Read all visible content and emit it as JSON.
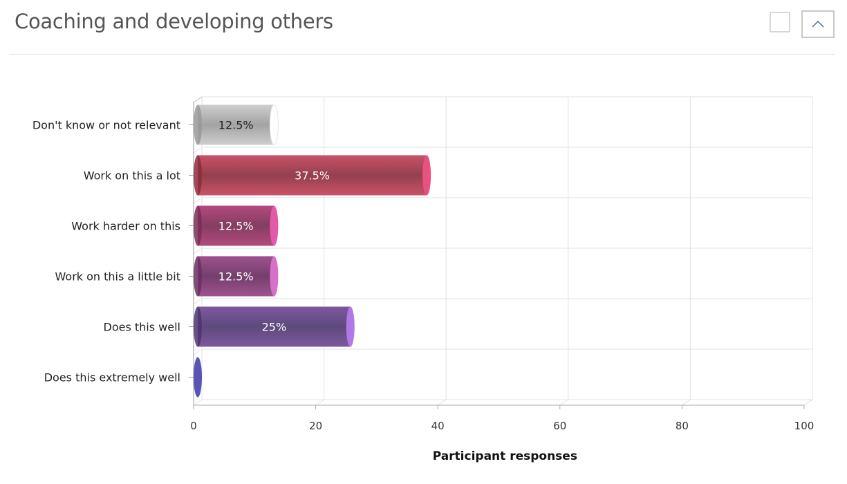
{
  "header": {
    "title": "Coaching and developing others",
    "expand_icon": "square-icon",
    "collapse_icon": "chevron-up-icon"
  },
  "chart_data": {
    "type": "bar",
    "orientation": "horizontal",
    "style": "3d-cylinder",
    "categories": [
      "Don't know or not relevant",
      "Work on this a lot",
      "Work harder on this",
      "Work on this a little bit",
      "Does this well",
      "Does this extremely well"
    ],
    "values": [
      12.5,
      37.5,
      12.5,
      12.5,
      25,
      0
    ],
    "data_labels": [
      "12.5%",
      "37.5%",
      "12.5%",
      "12.5%",
      "25%",
      ""
    ],
    "colors": [
      {
        "body": "#a3a3a3",
        "light": "#cfcfcf",
        "cap": "#ffffff",
        "base": "#999999",
        "label": "#222222"
      },
      {
        "body": "#93404f",
        "light": "#c95267",
        "cap": "#e8527e",
        "base": "#8e2a3c",
        "label": "#ffffff"
      },
      {
        "body": "#843e62",
        "light": "#b24a7e",
        "cap": "#e25aa8",
        "base": "#7d2c55",
        "label": "#ffffff"
      },
      {
        "body": "#733f6c",
        "light": "#a0528f",
        "cap": "#d670c9",
        "base": "#6a2f62",
        "label": "#ffffff"
      },
      {
        "body": "#5e4a7c",
        "light": "#7d58a0",
        "cap": "#b07ae6",
        "base": "#4e3470",
        "label": "#ffffff"
      },
      {
        "body": "#5a55b5",
        "light": "#6a64c4",
        "cap": "#5a55b5",
        "base": "#4f4aa8",
        "label": "#ffffff"
      }
    ],
    "xlabel": "Participant responses",
    "xlim": [
      0,
      100
    ],
    "xticks": [
      0,
      20,
      40,
      60,
      80,
      100
    ],
    "xtick_labels": [
      "0",
      "20",
      "40",
      "60",
      "80",
      "100"
    ],
    "grid": true,
    "legend": "none"
  }
}
